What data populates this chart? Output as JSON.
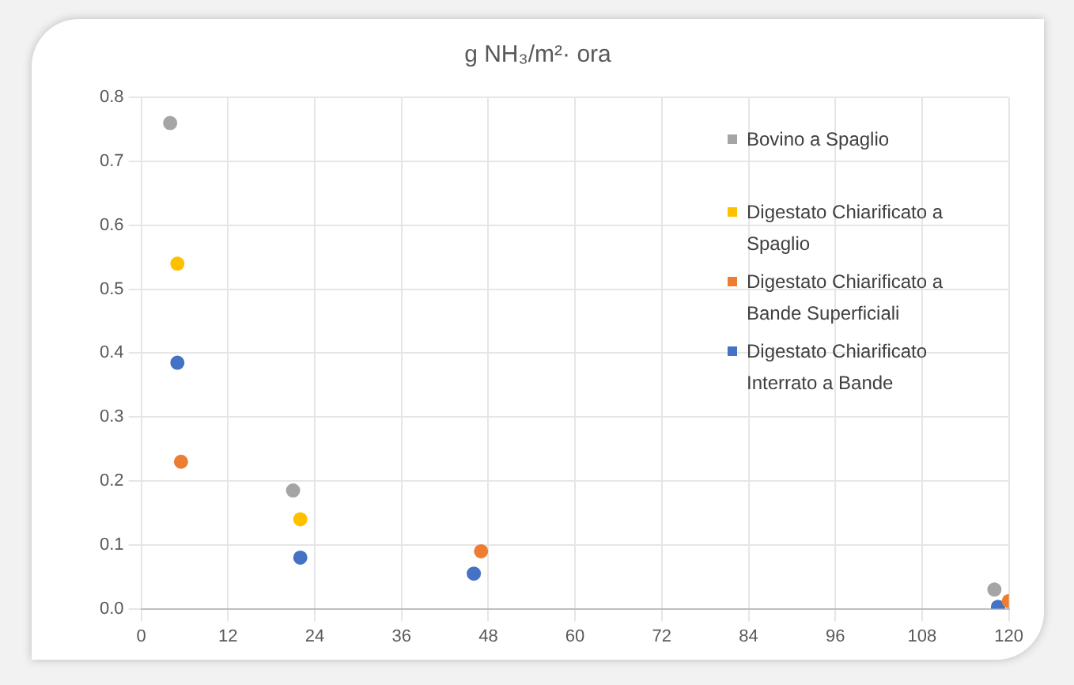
{
  "chart_data": {
    "type": "scatter",
    "title": "g NH₃/m²· ora",
    "xlim": [
      0,
      120
    ],
    "xticks": [
      0,
      12,
      24,
      36,
      48,
      60,
      72,
      84,
      96,
      108,
      120
    ],
    "ylim": [
      0,
      0.8
    ],
    "yticks": [
      {
        "value": 0,
        "label": "0.0"
      },
      0.1,
      0.2,
      0.3,
      0.4,
      0.5,
      0.6,
      0.7,
      0.8
    ],
    "grid": true,
    "legend": "top right",
    "marker": "circle",
    "series": [
      {
        "name": "Bovino a Spaglio",
        "color": "#a5a5a5",
        "x": [
          4,
          21,
          118
        ],
        "values": [
          0.76,
          0.185,
          0.03
        ]
      },
      {
        "name": "Digestato Chiarificato a Spaglio",
        "color": "#ffc000",
        "x": [
          5,
          22
        ],
        "values": [
          0.54,
          0.14
        ]
      },
      {
        "name": "Digestato Chiarificato a Bande Superficiali",
        "color": "#ed7d31",
        "x": [
          5.5,
          22,
          47,
          120
        ],
        "values": [
          0.23,
          null,
          0.09,
          0.012
        ]
      },
      {
        "name": "Digestato Chiarificato Interrato a Bande",
        "color": "#4472c4",
        "x": [
          5,
          22,
          46,
          118.5
        ],
        "values": [
          0.385,
          0.08,
          0.055,
          0.003
        ]
      }
    ]
  }
}
